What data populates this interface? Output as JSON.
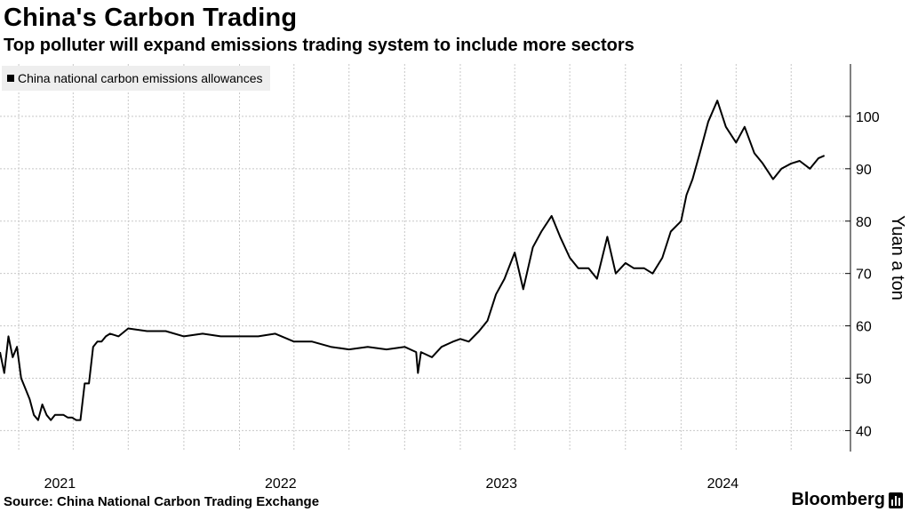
{
  "header": {
    "title": "China's Carbon Trading",
    "subtitle": "Top polluter will expand emissions trading system to include more sectors"
  },
  "footer": {
    "source": "Source: China National Carbon Trading Exchange",
    "brand": "Bloomberg"
  },
  "chart_data": {
    "type": "line",
    "title": "China's Carbon Trading",
    "subtitle": "Top polluter will expand emissions trading system to include more sectors",
    "xlabel": "",
    "ylabel": "Yuan a ton",
    "x_tick_labels": [
      "2021",
      "2022",
      "2023",
      "2024"
    ],
    "y_ticks": [
      40,
      50,
      60,
      70,
      80,
      90,
      100
    ],
    "ylim": [
      36,
      110
    ],
    "xlim": [
      "2020-12-01",
      "2024-09-15"
    ],
    "grid": true,
    "legend_position": "top-left",
    "line_color": "#000000",
    "series": [
      {
        "name": "China national carbon emissions allowances",
        "x": [
          "2020-12-01",
          "2020-12-08",
          "2020-12-15",
          "2020-12-22",
          "2020-12-29",
          "2021-01-05",
          "2021-01-12",
          "2021-01-19",
          "2021-01-26",
          "2021-02-02",
          "2021-02-09",
          "2021-02-16",
          "2021-02-23",
          "2021-03-02",
          "2021-03-09",
          "2021-03-16",
          "2021-03-23",
          "2021-03-30",
          "2021-04-06",
          "2021-04-13",
          "2021-04-20",
          "2021-04-27",
          "2021-05-04",
          "2021-05-11",
          "2021-05-18",
          "2021-05-25",
          "2021-06-01",
          "2021-06-15",
          "2021-07-01",
          "2021-08-01",
          "2021-09-01",
          "2021-10-01",
          "2021-11-01",
          "2021-12-01",
          "2022-01-01",
          "2022-02-01",
          "2022-03-01",
          "2022-04-01",
          "2022-05-01",
          "2022-06-01",
          "2022-07-01",
          "2022-08-01",
          "2022-09-01",
          "2022-10-01",
          "2022-10-20",
          "2022-10-23",
          "2022-10-28",
          "2022-11-15",
          "2022-12-01",
          "2022-12-20",
          "2023-01-01",
          "2023-01-15",
          "2023-02-01",
          "2023-02-15",
          "2023-03-01",
          "2023-03-15",
          "2023-04-01",
          "2023-04-15",
          "2023-05-01",
          "2023-05-15",
          "2023-06-01",
          "2023-06-15",
          "2023-07-01",
          "2023-07-15",
          "2023-08-01",
          "2023-08-15",
          "2023-09-01",
          "2023-09-15",
          "2023-10-01",
          "2023-10-15",
          "2023-11-01",
          "2023-11-15",
          "2023-12-01",
          "2023-12-15",
          "2024-01-01",
          "2024-01-10",
          "2024-01-20",
          "2024-02-01",
          "2024-02-15",
          "2024-03-01",
          "2024-03-15",
          "2024-04-01",
          "2024-04-15",
          "2024-05-01",
          "2024-05-15",
          "2024-06-01",
          "2024-06-15",
          "2024-07-01",
          "2024-07-15",
          "2024-08-01",
          "2024-08-15",
          "2024-08-25"
        ],
        "values": [
          55,
          51,
          58,
          54,
          56,
          50,
          48,
          46,
          43,
          42,
          45,
          43,
          42,
          43,
          43,
          43,
          42.5,
          42.5,
          42,
          42,
          49,
          49,
          56,
          57,
          57,
          58,
          58.5,
          58,
          59.5,
          59,
          59,
          58,
          58.5,
          58,
          58,
          58,
          58.5,
          57,
          57,
          56,
          55.5,
          56,
          55.5,
          56,
          55,
          51,
          55,
          54,
          56,
          57,
          57.5,
          57,
          59,
          61,
          66,
          69,
          74,
          67,
          75,
          78,
          81,
          77,
          73,
          71,
          71,
          69,
          77,
          70,
          72,
          71,
          71,
          70,
          73,
          78,
          80,
          85,
          88,
          93,
          99,
          103,
          98,
          95,
          98,
          93,
          91,
          88,
          90,
          91,
          91.5,
          90,
          92,
          92.5
        ]
      }
    ]
  }
}
